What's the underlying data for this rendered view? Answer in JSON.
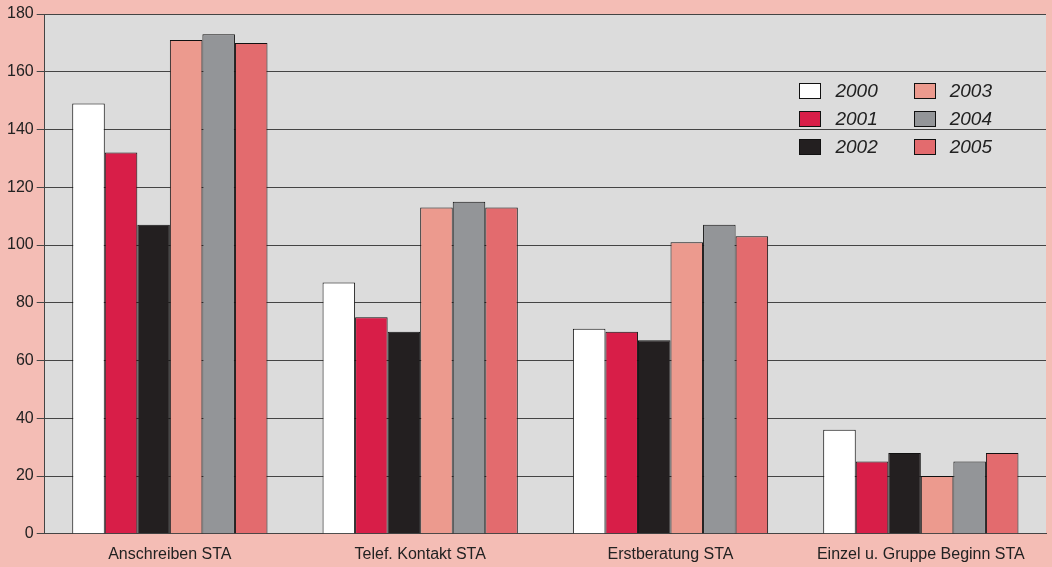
{
  "chart_data": {
    "type": "bar",
    "categories": [
      "Anschreiben STA",
      "Telef. Kontakt STA",
      "Erstberatung STA",
      "Einzel u. Gruppe Beginn STA"
    ],
    "series": [
      {
        "name": "2000",
        "color": "#ffffff",
        "values": [
          149,
          87,
          71,
          36
        ]
      },
      {
        "name": "2001",
        "color": "#d81e48",
        "values": [
          132,
          75,
          70,
          25
        ]
      },
      {
        "name": "2002",
        "color": "#231f20",
        "values": [
          107,
          70,
          67,
          28
        ]
      },
      {
        "name": "2003",
        "color": "#ec9a8e",
        "values": [
          171,
          113,
          101,
          20
        ]
      },
      {
        "name": "2004",
        "color": "#939598",
        "values": [
          173,
          115,
          107,
          25
        ]
      },
      {
        "name": "2005",
        "color": "#e36b6e",
        "values": [
          170,
          113,
          103,
          28
        ]
      }
    ],
    "ylim": [
      0,
      180
    ],
    "yticks": [
      0,
      20,
      40,
      60,
      80,
      100,
      120,
      140,
      160,
      180
    ],
    "grid": "y",
    "legend": "top right"
  }
}
